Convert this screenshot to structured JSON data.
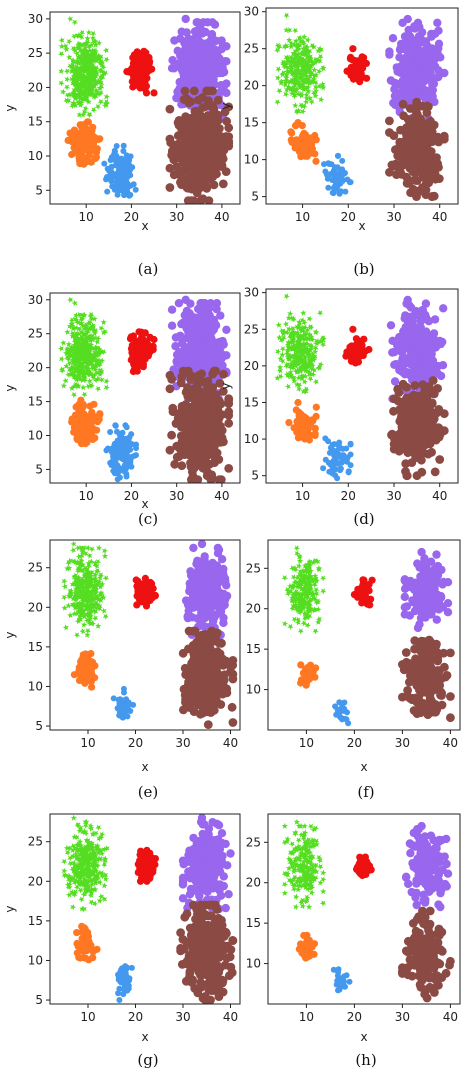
{
  "colors": {
    "green": "#55dd22",
    "red": "#ee1111",
    "purple": "#9966ee",
    "orange": "#ff7722",
    "blue": "#4499ee",
    "brown": "#8b4a44"
  },
  "chart_data": [
    {
      "type": "scatter",
      "caption": "(a)",
      "xlabel": "x",
      "ylabel": "y",
      "xlim": [
        2,
        44
      ],
      "ylim": [
        3,
        31
      ],
      "xticks": [
        10,
        20,
        30,
        40
      ],
      "yticks": [
        5,
        10,
        15,
        20,
        25,
        30
      ],
      "clusters": [
        {
          "color": "green",
          "center": [
            9.5,
            22
          ],
          "spread": [
            5,
            6
          ],
          "count": 380,
          "extra": [
            [
              6.5,
              30
            ],
            [
              7.5,
              29.5
            ]
          ]
        },
        {
          "color": "red",
          "center": [
            22,
            22.5
          ],
          "spread": [
            3,
            3.3
          ],
          "count": 110
        },
        {
          "color": "purple",
          "center": [
            35,
            22.5
          ],
          "spread": [
            6,
            7
          ],
          "count": 360,
          "extra": [
            [
              32,
              30
            ]
          ]
        },
        {
          "color": "orange",
          "center": [
            9.5,
            12
          ],
          "spread": [
            3.5,
            3.2
          ],
          "count": 110
        },
        {
          "color": "blue",
          "center": [
            17.5,
            7.5
          ],
          "spread": [
            3.5,
            4
          ],
          "count": 120
        },
        {
          "color": "brown",
          "center": [
            35,
            11.5
          ],
          "spread": [
            6.5,
            8
          ],
          "count": 460
        }
      ]
    },
    {
      "type": "scatter",
      "caption": "(b)",
      "xlabel": "x",
      "ylabel": "y",
      "xlim": [
        2,
        44
      ],
      "ylim": [
        4,
        30.5
      ],
      "xticks": [
        10,
        20,
        30,
        40
      ],
      "yticks": [
        5,
        10,
        15,
        20,
        25,
        30
      ],
      "clusters": [
        {
          "color": "green",
          "center": [
            9.5,
            22
          ],
          "spread": [
            5,
            5.5
          ],
          "count": 260,
          "extra": [
            [
              6.5,
              29.5
            ]
          ]
        },
        {
          "color": "red",
          "center": [
            22,
            22
          ],
          "spread": [
            2.5,
            2.2
          ],
          "count": 55,
          "extra": [
            [
              21,
              25
            ]
          ]
        },
        {
          "color": "purple",
          "center": [
            35,
            22
          ],
          "spread": [
            6,
            6.5
          ],
          "count": 240,
          "extra": [
            [
              33,
              29
            ]
          ]
        },
        {
          "color": "orange",
          "center": [
            10,
            12
          ],
          "spread": [
            3,
            2.6
          ],
          "count": 60,
          "extra": [
            [
              9,
              15
            ]
          ]
        },
        {
          "color": "blue",
          "center": [
            17.5,
            7.5
          ],
          "spread": [
            3,
            3
          ],
          "count": 60
        },
        {
          "color": "brown",
          "center": [
            35,
            11.5
          ],
          "spread": [
            6,
            6.5
          ],
          "count": 240,
          "extra": [
            [
              32,
              17.5
            ]
          ]
        }
      ]
    },
    {
      "type": "scatter",
      "caption": "(c)",
      "xlabel": "x",
      "ylabel": "y",
      "xlim": [
        2,
        44
      ],
      "ylim": [
        3,
        31
      ],
      "xticks": [
        10,
        20,
        30,
        40
      ],
      "yticks": [
        5,
        10,
        15,
        20,
        25,
        30
      ],
      "clusters": [
        {
          "color": "green",
          "center": [
            9.5,
            22
          ],
          "spread": [
            5,
            6
          ],
          "count": 380,
          "extra": [
            [
              6.5,
              30
            ],
            [
              7.5,
              29.5
            ]
          ]
        },
        {
          "color": "red",
          "center": [
            22,
            22.5
          ],
          "spread": [
            3,
            3.3
          ],
          "count": 110
        },
        {
          "color": "purple",
          "center": [
            35,
            22.5
          ],
          "spread": [
            6,
            7
          ],
          "count": 360,
          "extra": [
            [
              32,
              30
            ]
          ]
        },
        {
          "color": "orange",
          "center": [
            9.5,
            12
          ],
          "spread": [
            3.5,
            3.2
          ],
          "count": 110
        },
        {
          "color": "blue",
          "center": [
            17.5,
            7.5
          ],
          "spread": [
            3.5,
            4
          ],
          "count": 120
        },
        {
          "color": "brown",
          "center": [
            35,
            11.5
          ],
          "spread": [
            6.5,
            8
          ],
          "count": 460
        }
      ]
    },
    {
      "type": "scatter",
      "caption": "(d)",
      "xlabel": "",
      "ylabel": "y",
      "xlim": [
        2,
        44
      ],
      "ylim": [
        4,
        30.5
      ],
      "xticks": [
        10,
        20,
        30,
        40
      ],
      "yticks": [
        5,
        10,
        15,
        20,
        25,
        30
      ],
      "clusters": [
        {
          "color": "green",
          "center": [
            9.5,
            22
          ],
          "spread": [
            5,
            5.5
          ],
          "count": 260,
          "extra": [
            [
              6.5,
              29.5
            ]
          ]
        },
        {
          "color": "red",
          "center": [
            22,
            22
          ],
          "spread": [
            2.5,
            2.2
          ],
          "count": 55,
          "extra": [
            [
              21,
              25
            ]
          ]
        },
        {
          "color": "purple",
          "center": [
            35,
            22
          ],
          "spread": [
            6,
            6.5
          ],
          "count": 240,
          "extra": [
            [
              33,
              29
            ]
          ]
        },
        {
          "color": "orange",
          "center": [
            10,
            12
          ],
          "spread": [
            3,
            2.6
          ],
          "count": 60,
          "extra": [
            [
              9,
              15
            ]
          ]
        },
        {
          "color": "blue",
          "center": [
            17.5,
            7.5
          ],
          "spread": [
            3,
            3
          ],
          "count": 60
        },
        {
          "color": "brown",
          "center": [
            35,
            11.5
          ],
          "spread": [
            6,
            6.5
          ],
          "count": 240,
          "extra": [
            [
              32,
              17.5
            ]
          ]
        }
      ]
    },
    {
      "type": "scatter",
      "caption": "(e)",
      "xlabel": "x",
      "ylabel": "y",
      "xlim": [
        2,
        42
      ],
      "ylim": [
        4.5,
        28.5
      ],
      "xticks": [
        10,
        20,
        30,
        40
      ],
      "yticks": [
        5,
        10,
        15,
        20,
        25
      ],
      "clusters": [
        {
          "color": "green",
          "center": [
            9.5,
            22
          ],
          "spread": [
            4.5,
            5.5
          ],
          "count": 300,
          "extra": [
            [
              7,
              28
            ]
          ]
        },
        {
          "color": "red",
          "center": [
            22,
            22
          ],
          "spread": [
            2.2,
            2
          ],
          "count": 70
        },
        {
          "color": "purple",
          "center": [
            35,
            22
          ],
          "spread": [
            5,
            5.5
          ],
          "count": 260,
          "extra": [
            [
              34,
              28
            ]
          ]
        },
        {
          "color": "orange",
          "center": [
            9.5,
            12
          ],
          "spread": [
            2.4,
            2.3
          ],
          "count": 55,
          "extra": [
            [
              9,
              14
            ]
          ]
        },
        {
          "color": "blue",
          "center": [
            17.5,
            7.5
          ],
          "spread": [
            2.2,
            2.5
          ],
          "count": 45
        },
        {
          "color": "brown",
          "center": [
            35,
            11
          ],
          "spread": [
            5.5,
            6
          ],
          "count": 300,
          "extra": [
            [
              34,
              16.5
            ]
          ]
        }
      ]
    },
    {
      "type": "scatter",
      "caption": "(f)",
      "xlabel": "x",
      "ylabel": "",
      "xlim": [
        2,
        42
      ],
      "ylim": [
        5,
        28.5
      ],
      "xticks": [
        10,
        20,
        30,
        40
      ],
      "yticks": [
        10,
        15,
        20,
        25
      ],
      "clusters": [
        {
          "color": "green",
          "center": [
            9.5,
            22
          ],
          "spread": [
            4,
            5
          ],
          "count": 200,
          "extra": [
            [
              8,
              27.5
            ]
          ]
        },
        {
          "color": "red",
          "center": [
            22,
            22
          ],
          "spread": [
            2,
            1.8
          ],
          "count": 35
        },
        {
          "color": "purple",
          "center": [
            35,
            22
          ],
          "spread": [
            4.5,
            5
          ],
          "count": 150,
          "extra": [
            [
              34,
              27
            ]
          ]
        },
        {
          "color": "orange",
          "center": [
            10,
            12
          ],
          "spread": [
            2,
            1.5
          ],
          "count": 30
        },
        {
          "color": "blue",
          "center": [
            17.5,
            7.5
          ],
          "spread": [
            1.8,
            1.8
          ],
          "count": 22
        },
        {
          "color": "brown",
          "center": [
            35,
            11
          ],
          "spread": [
            5,
            5.5
          ],
          "count": 160,
          "extra": [
            [
              34,
              16
            ]
          ]
        }
      ]
    },
    {
      "type": "scatter",
      "caption": "(g)",
      "xlabel": "x",
      "ylabel": "y",
      "xlim": [
        2,
        42
      ],
      "ylim": [
        4.5,
        28.5
      ],
      "xticks": [
        10,
        20,
        30,
        40
      ],
      "yticks": [
        5,
        10,
        15,
        20,
        25
      ],
      "clusters": [
        {
          "color": "green",
          "center": [
            9.5,
            22
          ],
          "spread": [
            4.5,
            5.5
          ],
          "count": 300,
          "extra": [
            [
              7,
              28
            ]
          ]
        },
        {
          "color": "red",
          "center": [
            22,
            22
          ],
          "spread": [
            2.2,
            2
          ],
          "count": 70
        },
        {
          "color": "purple",
          "center": [
            35,
            22
          ],
          "spread": [
            5,
            5.5
          ],
          "count": 260,
          "extra": [
            [
              34,
              28
            ]
          ]
        },
        {
          "color": "orange",
          "center": [
            9.5,
            12
          ],
          "spread": [
            2.4,
            2.3
          ],
          "count": 55,
          "extra": [
            [
              9,
              14
            ]
          ]
        },
        {
          "color": "blue",
          "center": [
            17.5,
            7.5
          ],
          "spread": [
            2.2,
            2.5
          ],
          "count": 45
        },
        {
          "color": "brown",
          "center": [
            35,
            11
          ],
          "spread": [
            5.5,
            6
          ],
          "count": 300,
          "extra": [
            [
              34,
              16.5
            ]
          ]
        }
      ]
    },
    {
      "type": "scatter",
      "caption": "(h)",
      "xlabel": "x",
      "ylabel": "",
      "xlim": [
        2,
        42
      ],
      "ylim": [
        5,
        28.5
      ],
      "xticks": [
        10,
        20,
        30,
        40
      ],
      "yticks": [
        10,
        15,
        20,
        25
      ],
      "clusters": [
        {
          "color": "green",
          "center": [
            9.5,
            22
          ],
          "spread": [
            4,
            5
          ],
          "count": 200,
          "extra": [
            [
              8,
              27.5
            ]
          ]
        },
        {
          "color": "red",
          "center": [
            22,
            22
          ],
          "spread": [
            2,
            1.8
          ],
          "count": 35
        },
        {
          "color": "purple",
          "center": [
            35,
            22
          ],
          "spread": [
            4.5,
            5
          ],
          "count": 150,
          "extra": [
            [
              34,
              27
            ]
          ]
        },
        {
          "color": "orange",
          "center": [
            10,
            12
          ],
          "spread": [
            2,
            1.5
          ],
          "count": 30
        },
        {
          "color": "blue",
          "center": [
            17.5,
            7.5
          ],
          "spread": [
            1.8,
            1.8
          ],
          "count": 22
        },
        {
          "color": "brown",
          "center": [
            35,
            11
          ],
          "spread": [
            5,
            5.5
          ],
          "count": 160,
          "extra": [
            [
              34,
              16
            ]
          ]
        }
      ]
    }
  ]
}
